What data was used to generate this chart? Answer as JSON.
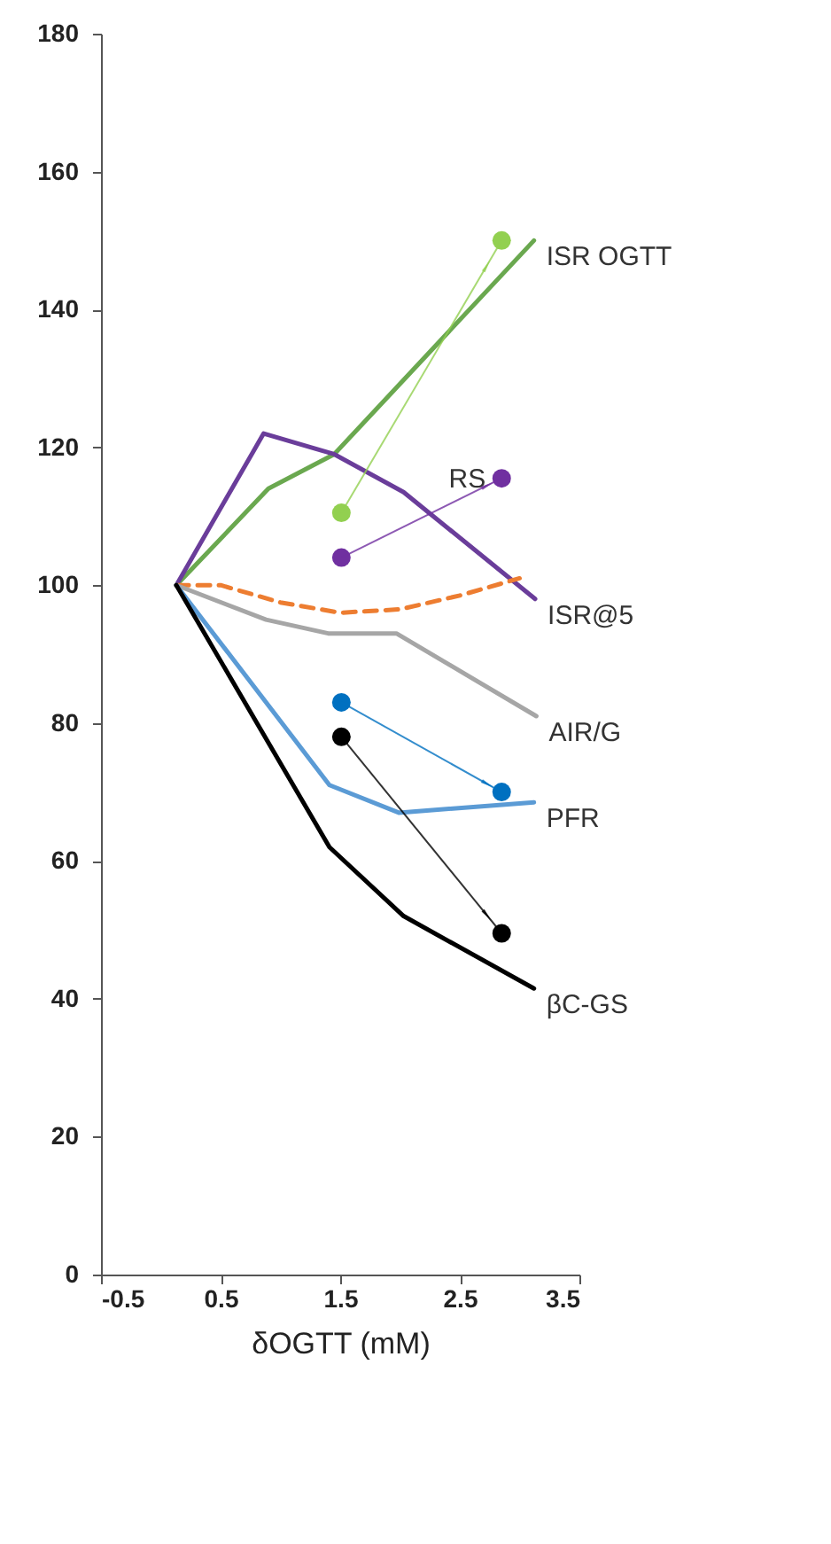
{
  "chart_data": {
    "type": "line",
    "xlabel": "δOGTT (mM)",
    "xlim": [
      -0.5,
      3.5
    ],
    "xticks": [
      -0.5,
      0.5,
      1.5,
      2.5,
      3.5
    ],
    "ylim": [
      0,
      180
    ],
    "yticks": [
      0,
      20,
      40,
      60,
      80,
      100,
      120,
      140,
      160,
      180
    ],
    "grid": false,
    "marker": "none",
    "series": [
      {
        "name": "ISR OGTT",
        "color": "#6aa84f",
        "x": [
          0.13,
          0.9,
          1.45,
          3.12
        ],
        "values": [
          100,
          114,
          119,
          150
        ]
      },
      {
        "name": "ISR@5",
        "color": "#6a3d9a",
        "x": [
          0.13,
          0.86,
          1.45,
          2.03,
          3.13
        ],
        "values": [
          100,
          122,
          119,
          113.5,
          98
        ]
      },
      {
        "color": "#ed7d31",
        "line_style": "dashed",
        "x": [
          0.13,
          0.5,
          1.0,
          1.5,
          2.0,
          2.5,
          3.0
        ],
        "values": [
          100,
          100,
          97.5,
          96,
          96.5,
          98.5,
          101
        ]
      },
      {
        "name": "AIR/G",
        "color": "#a6a6a6",
        "x": [
          0.13,
          0.88,
          1.4,
          1.97,
          3.14
        ],
        "values": [
          100,
          95,
          93,
          93,
          81
        ]
      },
      {
        "name": "PFR",
        "color": "#5b9bd5",
        "x": [
          0.13,
          1.41,
          1.99,
          3.12
        ],
        "values": [
          100,
          71,
          67,
          68.5
        ]
      },
      {
        "name": "βC-GS",
        "color": "#000000",
        "x": [
          0.13,
          1.41,
          2.03,
          3.12
        ],
        "values": [
          100,
          62,
          52,
          41.5
        ]
      },
      {
        "type": "scatter",
        "marker": "circle",
        "color": "#92d050",
        "x": [
          1.51,
          2.85
        ],
        "values": [
          110.5,
          150
        ]
      },
      {
        "type": "scatter",
        "marker": "circle",
        "name": "RS",
        "color": "#7030a0",
        "x": [
          1.51,
          2.85
        ],
        "values": [
          104,
          115.5
        ]
      },
      {
        "type": "scatter",
        "marker": "circle",
        "color": "#0070c0",
        "x": [
          1.51,
          2.85
        ],
        "values": [
          83,
          70
        ]
      },
      {
        "type": "scatter",
        "marker": "circle",
        "color": "#000000",
        "x": [
          1.51,
          2.85
        ],
        "values": [
          78,
          49.5
        ]
      }
    ]
  }
}
